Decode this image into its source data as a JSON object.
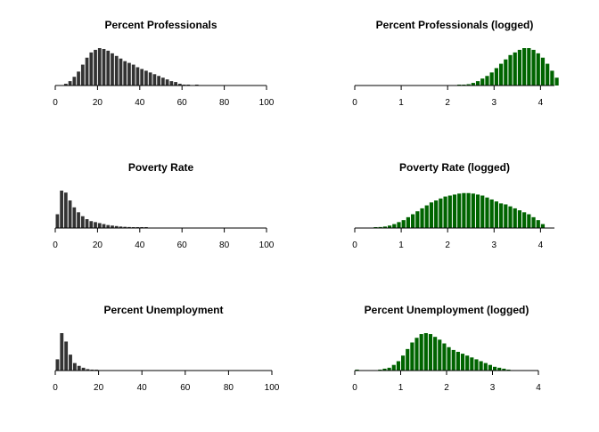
{
  "colors": {
    "linear": "#333333",
    "logged": "#006400",
    "axis": "#000000"
  },
  "chart_data": [
    {
      "type": "bar",
      "title": "Percent Professionals",
      "xlim": [
        0,
        100
      ],
      "ticks": [
        0,
        20,
        40,
        60,
        80,
        100
      ],
      "tick_labels": [
        "0",
        "20",
        "40",
        "60",
        "80",
        "100"
      ],
      "bin_width": 2,
      "bin_start": 4,
      "values": [
        2,
        5,
        10,
        16,
        24,
        32,
        38,
        41,
        43,
        42,
        40,
        37,
        34,
        31,
        28,
        26,
        24,
        21,
        19,
        17,
        15,
        13,
        11,
        9,
        7,
        5,
        4,
        2,
        1,
        1,
        0,
        0.5
      ],
      "ylim": [
        0,
        43
      ],
      "color": "linear"
    },
    {
      "type": "bar",
      "title": "Percent Professionals (logged)",
      "xlim": [
        0,
        4.3
      ],
      "ticks": [
        0,
        1,
        2,
        3,
        4
      ],
      "tick_labels": [
        "0",
        "1",
        "2",
        "3",
        "4"
      ],
      "bin_width": 0.1,
      "bin_start": 2.2,
      "values": [
        0.5,
        1,
        1.5,
        3,
        5,
        8,
        11,
        15,
        20,
        25,
        30,
        35,
        38,
        41,
        43,
        43,
        41,
        37,
        32,
        25,
        17,
        9
      ],
      "ylim": [
        0,
        43
      ],
      "color": "logged"
    },
    {
      "type": "bar",
      "title": "Poverty Rate",
      "xlim": [
        0,
        100
      ],
      "ticks": [
        0,
        20,
        40,
        60,
        80,
        100
      ],
      "tick_labels": [
        "0",
        "20",
        "40",
        "60",
        "80",
        "100"
      ],
      "bin_width": 2,
      "bin_start": 0,
      "values": [
        14,
        38,
        36,
        28,
        21,
        16,
        12,
        9,
        7,
        6,
        5,
        4,
        3,
        2.5,
        2,
        1.5,
        1.2,
        1,
        0.8,
        0.6,
        0.5,
        0.4
      ],
      "ylim": [
        0,
        38
      ],
      "color": "linear"
    },
    {
      "type": "bar",
      "title": "Poverty Rate (logged)",
      "xlim": [
        0,
        4.3
      ],
      "ticks": [
        0,
        1,
        2,
        3,
        4
      ],
      "tick_labels": [
        "0",
        "1",
        "2",
        "3",
        "4"
      ],
      "bin_width": 0.1,
      "bin_start": 0.4,
      "values": [
        0.5,
        1,
        1.5,
        2.5,
        4,
        6,
        8,
        11,
        14,
        17,
        20,
        23,
        26,
        28,
        30,
        32,
        33,
        34,
        35,
        35.5,
        35.5,
        35,
        34,
        33,
        31,
        29,
        27,
        25,
        24,
        22,
        20,
        18,
        16,
        14,
        11,
        8,
        4
      ],
      "ylim": [
        0,
        38
      ],
      "color": "logged"
    },
    {
      "type": "bar",
      "title": "Percent Unemployment",
      "xlim": [
        0,
        100
      ],
      "ticks": [
        0,
        20,
        40,
        60,
        80,
        100
      ],
      "tick_labels": [
        "0",
        "20",
        "40",
        "60",
        "80",
        "100"
      ],
      "bin_width": 2,
      "bin_start": 0,
      "values": [
        12,
        40,
        31,
        17,
        8,
        5,
        3,
        1.5,
        1,
        0.5
      ],
      "ylim": [
        0,
        40
      ],
      "color": "linear"
    },
    {
      "type": "bar",
      "title": "Percent Unemployment (logged)",
      "xlim": [
        0,
        4
      ],
      "ticks": [
        0,
        1,
        2,
        3,
        4
      ],
      "tick_labels": [
        "0",
        "1",
        "2",
        "3",
        "4"
      ],
      "bin_width": 0.1,
      "bin_start": 0,
      "values": [
        1,
        0,
        0,
        0,
        0,
        1,
        2,
        3,
        6,
        10,
        16,
        23,
        30,
        35,
        39,
        40,
        39,
        36,
        33,
        29,
        25,
        22,
        20,
        18,
        16,
        14,
        12,
        10,
        8,
        6,
        4,
        3,
        2,
        1
      ],
      "ylim": [
        0,
        40
      ],
      "color": "logged"
    }
  ]
}
